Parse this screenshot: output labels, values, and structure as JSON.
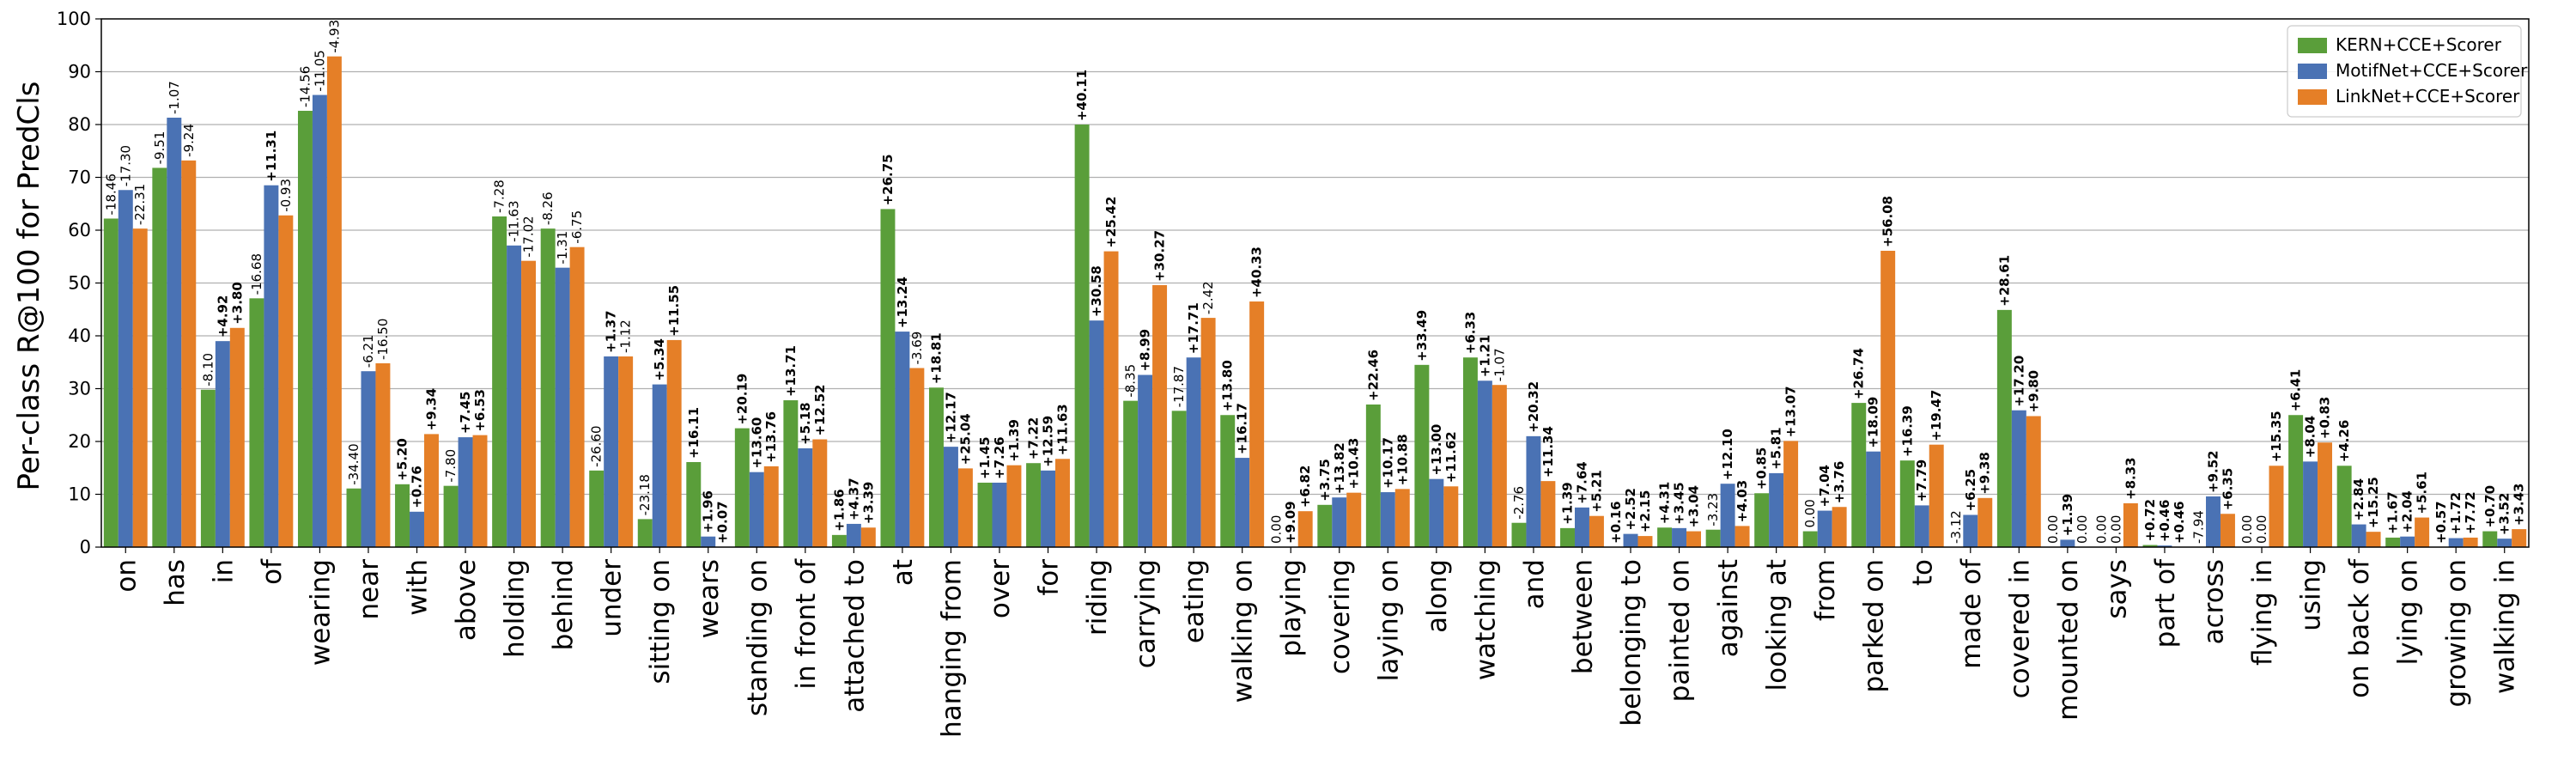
{
  "chart_data": {
    "type": "bar",
    "ylabel": "Per-class R@100 for PredCls",
    "ylim": [
      0,
      100
    ],
    "yticks": [
      0,
      10,
      20,
      30,
      40,
      50,
      60,
      70,
      80,
      90,
      100
    ],
    "grid": true,
    "legend_position": "top-right",
    "categories": [
      "on",
      "has",
      "in",
      "of",
      "wearing",
      "near",
      "with",
      "above",
      "holding",
      "behind",
      "under",
      "sitting on",
      "wears",
      "standing on",
      "in front of",
      "attached to",
      "at",
      "hanging from",
      "over",
      "for",
      "riding",
      "carrying",
      "eating",
      "walking on",
      "playing",
      "covering",
      "laying on",
      "along",
      "watching",
      "and",
      "between",
      "belonging to",
      "painted on",
      "against",
      "looking at",
      "from",
      "parked on",
      "to",
      "made of",
      "covered in",
      "mounted on",
      "says",
      "part of",
      "across",
      "flying in",
      "using",
      "on back of",
      "lying on",
      "growing on",
      "walking in"
    ],
    "series": [
      {
        "name": "KERN+CCE+Scorer",
        "color": "#5a9e3a",
        "values": [
          62.2,
          71.8,
          29.8,
          47.1,
          82.6,
          11.1,
          11.9,
          11.6,
          62.6,
          60.3,
          14.5,
          5.3,
          16.1,
          22.5,
          27.8,
          2.3,
          64.0,
          30.2,
          12.2,
          15.9,
          80.0,
          27.7,
          25.8,
          25.0,
          0.0,
          8.0,
          27.0,
          34.5,
          35.9,
          4.6,
          3.6,
          0.0,
          3.7,
          3.3,
          10.2,
          3.0,
          27.3,
          16.4,
          0.0,
          44.9,
          0.0,
          0.0,
          0.4,
          0.0,
          0.0,
          25.0,
          15.4,
          1.8,
          0.0,
          3.0
        ],
        "annotations": [
          "-18.46",
          "-9.51",
          "-8.10",
          "-16.68",
          "-14.56",
          "-34.40",
          "+5.20",
          "-7.80",
          "-7.28",
          "-8.26",
          "-26.60",
          "-23.18",
          "+16.11",
          "+20.19",
          "+13.71",
          "+1.86",
          "+26.75",
          "+18.81",
          "+1.45",
          "+7.22",
          "+40.11",
          "-8.35",
          "-17.87",
          "+13.80",
          "0.00",
          "+3.75",
          "+22.46",
          "+33.49",
          "+6.33",
          "-2.76",
          "+1.39",
          "+0.16",
          "+4.31",
          "-3.23",
          "+0.85",
          "0.00",
          "+26.74",
          "+16.39",
          "-3.12",
          "+28.61",
          "0.00",
          "0.00",
          "+0.72",
          "-7.94",
          "0.00",
          "+6.41",
          "+4.26",
          "+1.67",
          "+0.57",
          "+0.70"
        ]
      },
      {
        "name": "MotifNet+CCE+Scorer",
        "color": "#4a72b4",
        "values": [
          67.6,
          81.3,
          39.0,
          68.5,
          85.6,
          33.3,
          6.7,
          20.8,
          57.1,
          52.9,
          36.1,
          30.8,
          2.0,
          14.2,
          18.7,
          4.4,
          40.8,
          19.0,
          12.2,
          14.5,
          42.9,
          32.6,
          35.9,
          16.9,
          0.0,
          9.4,
          10.4,
          12.9,
          31.5,
          21.0,
          7.5,
          2.5,
          3.6,
          12.0,
          14.0,
          6.9,
          18.1,
          7.9,
          6.1,
          25.9,
          1.4,
          0.0,
          0.3,
          9.6,
          0.0,
          16.2,
          4.3,
          2.0,
          1.7,
          1.6
        ],
        "annotations": [
          "-17.30",
          "-1.07",
          "+4.92",
          "+11.31",
          "-11.05",
          "-6.21",
          "+0.76",
          "+7.45",
          "-11.63",
          "-1.31",
          "+1.37",
          "+5.34",
          "+1.96",
          "+13.60",
          "+5.18",
          "+4.37",
          "+13.24",
          "+12.17",
          "+7.26",
          "+12.59",
          "+30.58",
          "+8.99",
          "+17.71",
          "+16.17",
          "+9.09",
          "+13.82",
          "+10.17",
          "+13.00",
          "+1.21",
          "+20.32",
          "+7.64",
          "+2.52",
          "+3.45",
          "+12.10",
          "+5.81",
          "+7.04",
          "+18.09",
          "+7.79",
          "+6.25",
          "+17.20",
          "+1.39",
          "0.00",
          "+0.46",
          "+9.52",
          "0.00",
          "+8.04",
          "+2.84",
          "+2.04",
          "+1.72",
          "+3.52"
        ]
      },
      {
        "name": "LinkNet+CCE+Scorer",
        "color": "#e57f27",
        "values": [
          60.3,
          73.2,
          41.5,
          62.8,
          92.9,
          34.8,
          21.4,
          21.2,
          54.2,
          56.8,
          36.1,
          39.2,
          0.0,
          15.3,
          20.4,
          3.7,
          33.9,
          14.9,
          15.5,
          16.7,
          56.0,
          49.6,
          43.4,
          46.5,
          6.8,
          10.3,
          11.0,
          11.5,
          30.7,
          12.5,
          5.9,
          2.1,
          3.0,
          4.0,
          20.1,
          7.6,
          56.1,
          19.4,
          9.3,
          24.8,
          0.0,
          8.3,
          0.0,
          6.3,
          15.4,
          19.8,
          2.9,
          5.6,
          1.8,
          3.4
        ],
        "annotations": [
          "-22.31",
          "-9.24",
          "+3.80",
          "-0.93",
          "-4.93",
          "-16.50",
          "+9.34",
          "+6.53",
          "-17.02",
          "-6.75",
          "-1.12",
          "+11.55",
          "+0.07",
          "+13.76",
          "+12.52",
          "+3.39",
          "-3.69",
          "+25.04",
          "+1.39",
          "+11.63",
          "+25.42",
          "+30.27",
          "-2.42",
          "+40.33",
          "+6.82",
          "+10.43",
          "+10.88",
          "+11.62",
          "-1.07",
          "+11.34",
          "+5.21",
          "+2.15",
          "+3.04",
          "+4.03",
          "+13.07",
          "+3.76",
          "+56.08",
          "+19.47",
          "+9.38",
          "+9.80",
          "0.00",
          "+8.33",
          "+0.46",
          "+6.35",
          "+15.35",
          "+0.83",
          "+15.25",
          "+5.61",
          "+7.72",
          "+3.43"
        ]
      }
    ]
  }
}
